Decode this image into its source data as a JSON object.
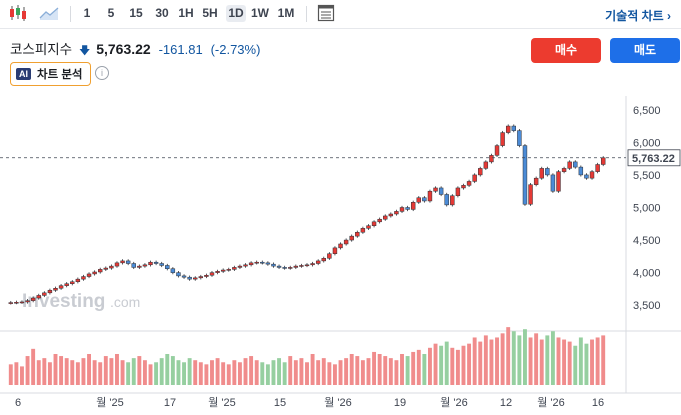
{
  "toolbar": {
    "intervals": [
      "1",
      "5",
      "15",
      "30",
      "1H",
      "5H",
      "1D",
      "1W",
      "1M"
    ],
    "active_interval": "1D",
    "chart_type_label": "기술적 차트"
  },
  "instrument": {
    "name": "코스피지수",
    "price": "5,763.22",
    "change": "-161.81",
    "change_pct": "(-2.73%)"
  },
  "actions": {
    "buy": "매수",
    "sell": "매도"
  },
  "ai": {
    "badge": "AI",
    "label": "차트 분석"
  },
  "watermark": {
    "brand": "Investing",
    "suffix": ".com"
  },
  "colors": {
    "up": "#e53935",
    "down": "#4b8bd6",
    "vol_up": "#f08c8c",
    "vol_down": "#96cfa0"
  },
  "chart_data": {
    "type": "candlestick",
    "last_price": "5,763.22",
    "y_ticks": [
      "6,500",
      "6,000",
      "5,500",
      "5,000",
      "4,500",
      "4,000",
      "3,500"
    ],
    "y_tick_values": [
      6500,
      6000,
      5500,
      5000,
      4500,
      4000,
      3500
    ],
    "ylim": [
      3150,
      6650
    ],
    "x_labels": [
      "6",
      "월 '25",
      "17",
      "월 '25",
      "15",
      "월 '26",
      "19",
      "월 '26",
      "12",
      "월 '26",
      "16"
    ],
    "closes": [
      3540,
      3545,
      3550,
      3570,
      3610,
      3650,
      3690,
      3730,
      3760,
      3800,
      3830,
      3860,
      3900,
      3940,
      3980,
      4010,
      4050,
      4070,
      4100,
      4150,
      4180,
      4140,
      4080,
      4100,
      4120,
      4160,
      4140,
      4110,
      4060,
      4000,
      3950,
      3930,
      3900,
      3920,
      3940,
      3960,
      4000,
      4020,
      4040,
      4050,
      4080,
      4100,
      4120,
      4150,
      4160,
      4150,
      4130,
      4100,
      4080,
      4070,
      4080,
      4100,
      4110,
      4120,
      4140,
      4180,
      4220,
      4290,
      4380,
      4440,
      4500,
      4560,
      4620,
      4680,
      4720,
      4780,
      4820,
      4870,
      4900,
      4940,
      5000,
      4970,
      5080,
      5150,
      5100,
      5250,
      5300,
      5200,
      5040,
      5180,
      5300,
      5340,
      5400,
      5500,
      5600,
      5700,
      5800,
      5950,
      6150,
      6250,
      6180,
      5950,
      5050,
      5350,
      5450,
      5600,
      5500,
      5250,
      5550,
      5600,
      5700,
      5620,
      5500,
      5450,
      5550,
      5660,
      5763
    ],
    "volumes": [
      20,
      22,
      18,
      28,
      35,
      24,
      26,
      22,
      30,
      28,
      26,
      24,
      22,
      26,
      30,
      24,
      22,
      28,
      26,
      30,
      24,
      22,
      26,
      28,
      24,
      20,
      22,
      26,
      30,
      28,
      24,
      22,
      26,
      24,
      22,
      20,
      24,
      26,
      22,
      20,
      24,
      22,
      26,
      28,
      24,
      22,
      20,
      24,
      26,
      22,
      28,
      24,
      26,
      22,
      30,
      24,
      26,
      22,
      20,
      24,
      26,
      30,
      28,
      24,
      26,
      32,
      30,
      28,
      26,
      24,
      30,
      28,
      32,
      34,
      30,
      36,
      40,
      38,
      42,
      36,
      34,
      38,
      40,
      46,
      42,
      48,
      44,
      46,
      50,
      56,
      52,
      48,
      54,
      46,
      50,
      44,
      48,
      52,
      46,
      44,
      42,
      38,
      46,
      40,
      44,
      46,
      48
    ]
  }
}
